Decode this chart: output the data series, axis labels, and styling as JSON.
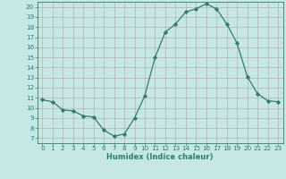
{
  "x": [
    0,
    1,
    2,
    3,
    4,
    5,
    6,
    7,
    8,
    9,
    10,
    11,
    12,
    13,
    14,
    15,
    16,
    17,
    18,
    19,
    20,
    21,
    22,
    23
  ],
  "y": [
    10.8,
    10.6,
    9.8,
    9.7,
    9.2,
    9.1,
    7.8,
    7.2,
    7.4,
    9.0,
    11.2,
    15.0,
    17.5,
    18.3,
    19.5,
    19.8,
    20.3,
    19.8,
    18.3,
    16.4,
    13.1,
    11.4,
    10.7,
    10.6
  ],
  "line_color": "#2e7d6e",
  "marker_color": "#2e7d6e",
  "bg_color": "#c5e8e6",
  "grid_color": "#c0a0a0",
  "xlabel": "Humidex (Indice chaleur)",
  "xlim": [
    -0.5,
    23.5
  ],
  "ylim": [
    6.5,
    20.5
  ],
  "yticks": [
    7,
    8,
    9,
    10,
    11,
    12,
    13,
    14,
    15,
    16,
    17,
    18,
    19,
    20
  ],
  "xticks": [
    0,
    1,
    2,
    3,
    4,
    5,
    6,
    7,
    8,
    9,
    10,
    11,
    12,
    13,
    14,
    15,
    16,
    17,
    18,
    19,
    20,
    21,
    22,
    23
  ],
  "label_color": "#2e7d6e",
  "tick_color": "#2e7d6e",
  "xlabel_fontsize": 6.0,
  "tick_fontsize": 5.2,
  "linewidth": 0.9,
  "markersize": 2.2
}
